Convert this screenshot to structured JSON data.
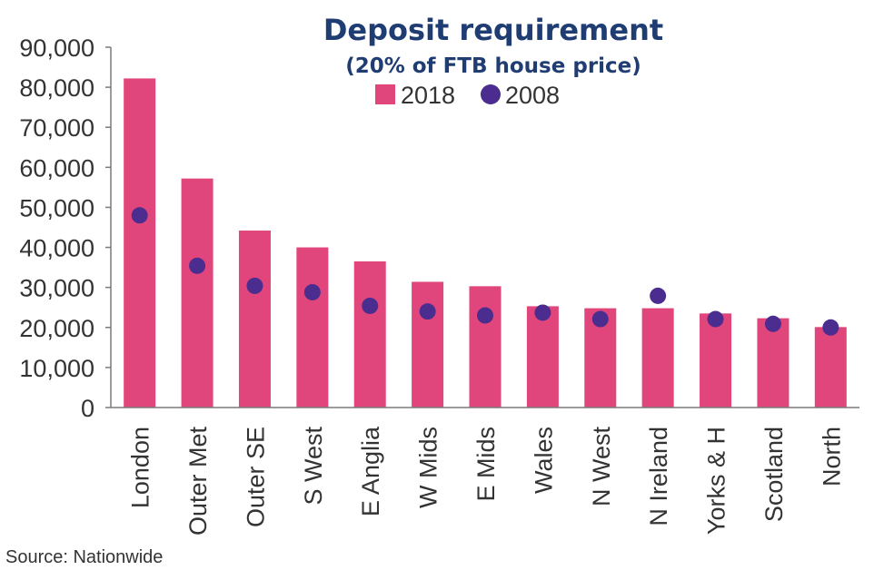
{
  "chart_data": {
    "type": "bar",
    "title": "Deposit requirement",
    "subtitle": "(20% of FTB house price)",
    "categories": [
      "London",
      "Outer Met",
      "Outer SE",
      "S West",
      "E Anglia",
      "W Mids",
      "E Mids",
      "Wales",
      "N West",
      "N Ireland",
      "Yorks & H",
      "Scotland",
      "North"
    ],
    "series": [
      {
        "name": "2018",
        "mark": "bar",
        "color": "#e0467b",
        "values": [
          82200,
          57200,
          44200,
          40000,
          36500,
          31400,
          30300,
          25300,
          24800,
          24800,
          23500,
          22300,
          20100
        ]
      },
      {
        "name": "2008",
        "mark": "dot",
        "color": "#4a2d8f",
        "values": [
          48000,
          35400,
          30400,
          28800,
          25400,
          24000,
          23000,
          23700,
          22100,
          27900,
          22100,
          20900,
          20000
        ]
      }
    ],
    "xlabel": "",
    "ylabel": "",
    "ylim": [
      0,
      90000
    ],
    "yticks": [
      0,
      10000,
      20000,
      30000,
      40000,
      50000,
      60000,
      70000,
      80000,
      90000
    ],
    "ytick_labels": [
      "0",
      "10,000",
      "20,000",
      "30,000",
      "40,000",
      "50,000",
      "60,000",
      "70,000",
      "80,000",
      "90,000"
    ],
    "grid": false,
    "legend": "top-center"
  },
  "source": "Source: Nationwide"
}
